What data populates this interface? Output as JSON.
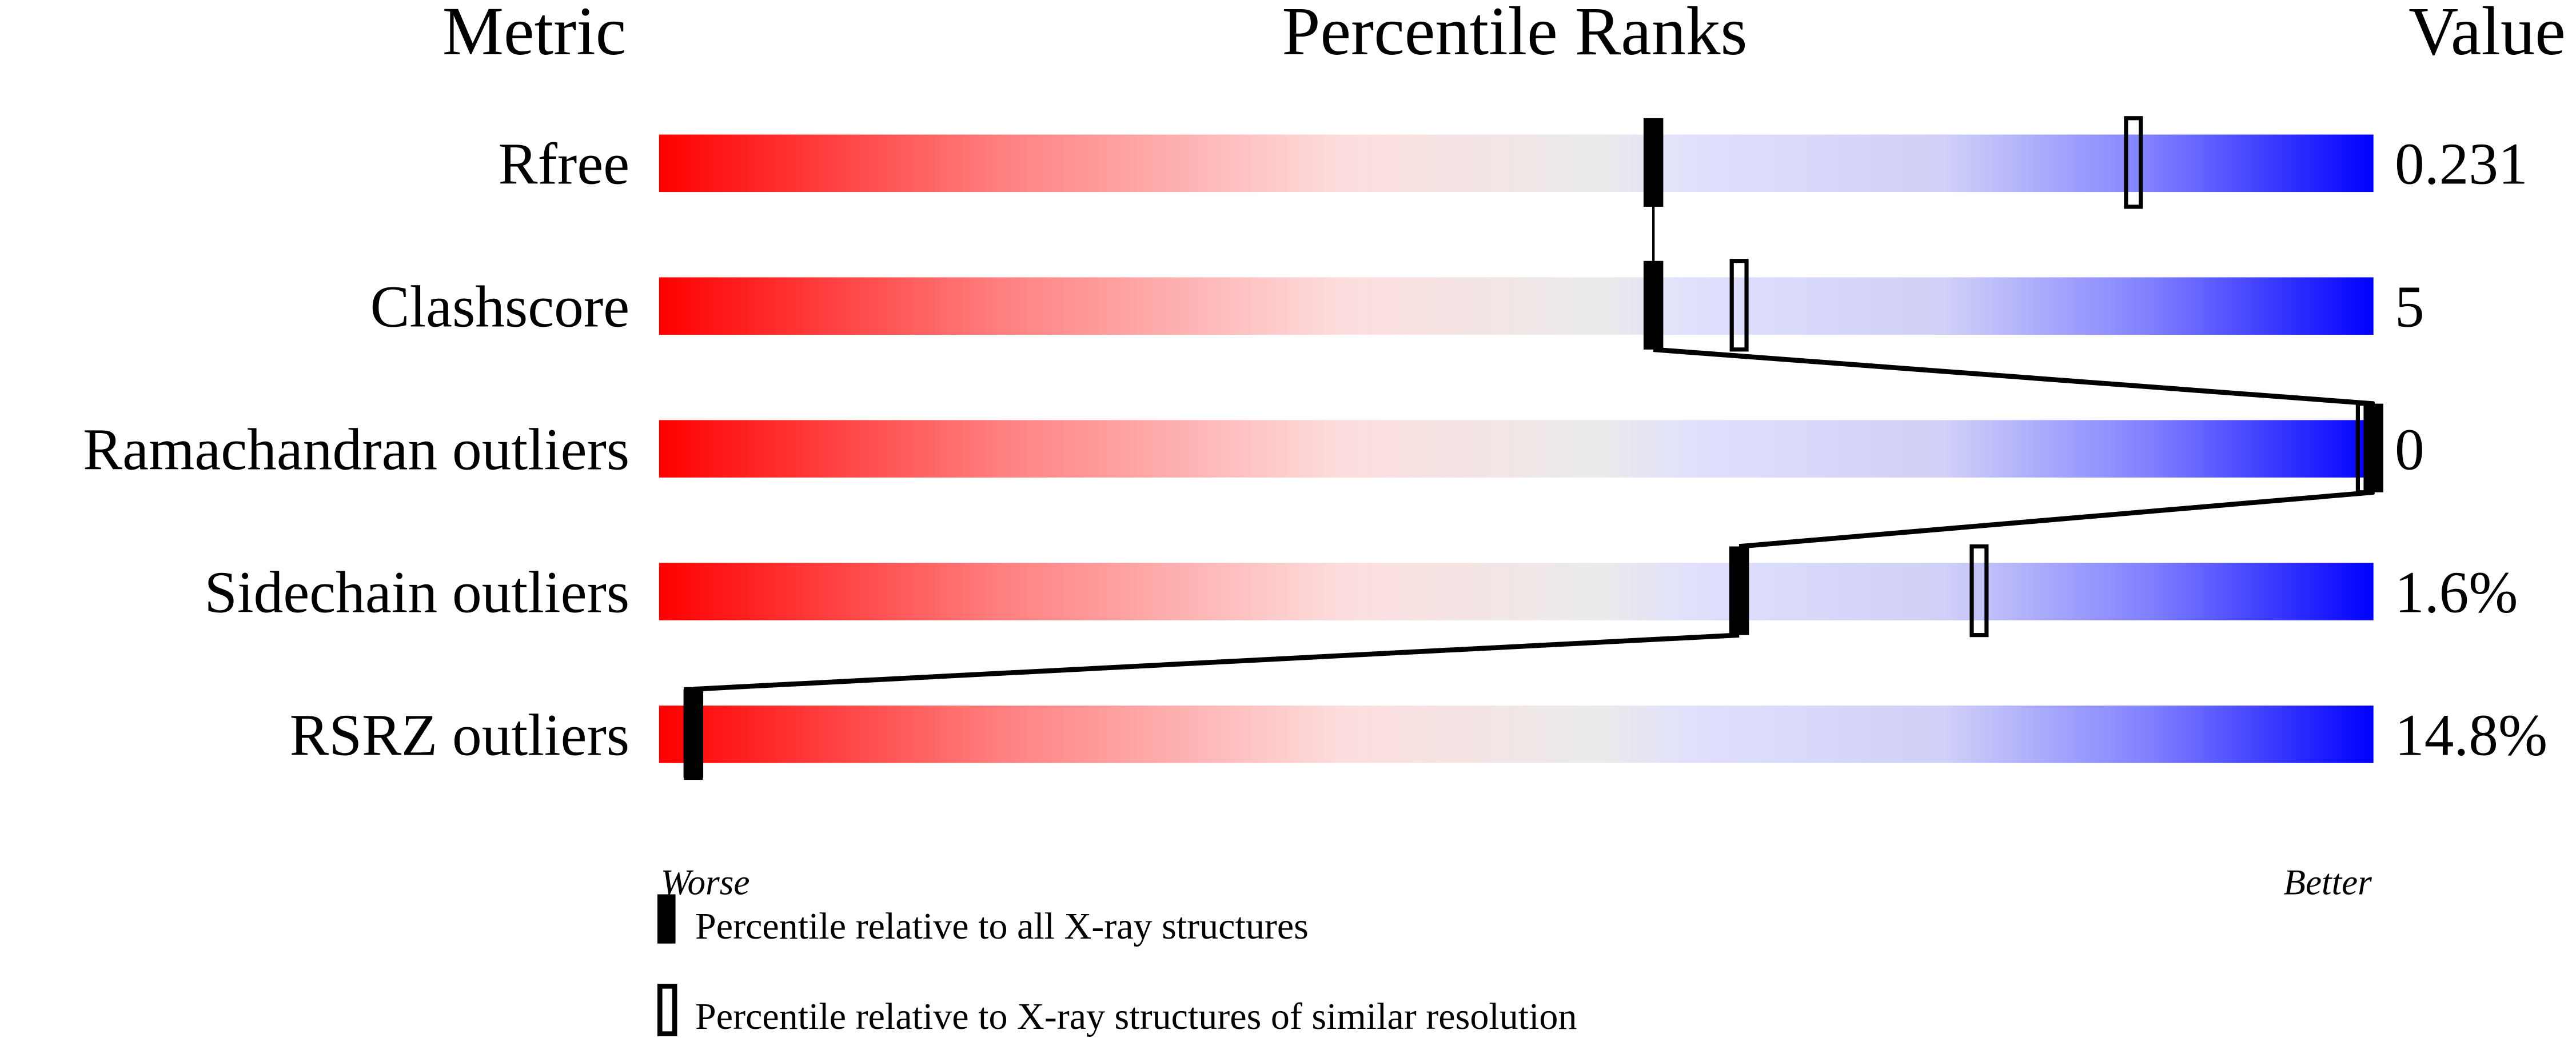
{
  "chart_data": {
    "type": "bar",
    "headers": {
      "metric": "Metric",
      "ranks": "Percentile Ranks",
      "value": "Value"
    },
    "xlim": [
      0,
      100
    ],
    "metrics": [
      {
        "name": "Rfree",
        "value": "0.231",
        "percentile_all": 58,
        "percentile_similar": 86
      },
      {
        "name": "Clashscore",
        "value": "5",
        "percentile_all": 58,
        "percentile_similar": 63
      },
      {
        "name": "Ramachandran outliers",
        "value": "0",
        "percentile_all": 100,
        "percentile_similar": 100
      },
      {
        "name": "Sidechain outliers",
        "value": "1.6%",
        "percentile_all": 63,
        "percentile_similar": 77
      },
      {
        "name": "RSRZ outliers",
        "value": "14.8%",
        "percentile_all": 2,
        "percentile_similar": 2
      }
    ],
    "axis_left_label": "Worse",
    "axis_right_label": "Better",
    "legend": [
      {
        "marker": "filled",
        "label": "Percentile relative to all X-ray structures"
      },
      {
        "marker": "open",
        "label": "Percentile relative to X-ray structures of similar resolution"
      }
    ],
    "gradient_colors": [
      "#ff0000",
      "#ff8080",
      "#fddede",
      "#ebebeb",
      "#e0e0fc",
      "#d0d0f8",
      "#8080ff",
      "#0000ff"
    ]
  }
}
